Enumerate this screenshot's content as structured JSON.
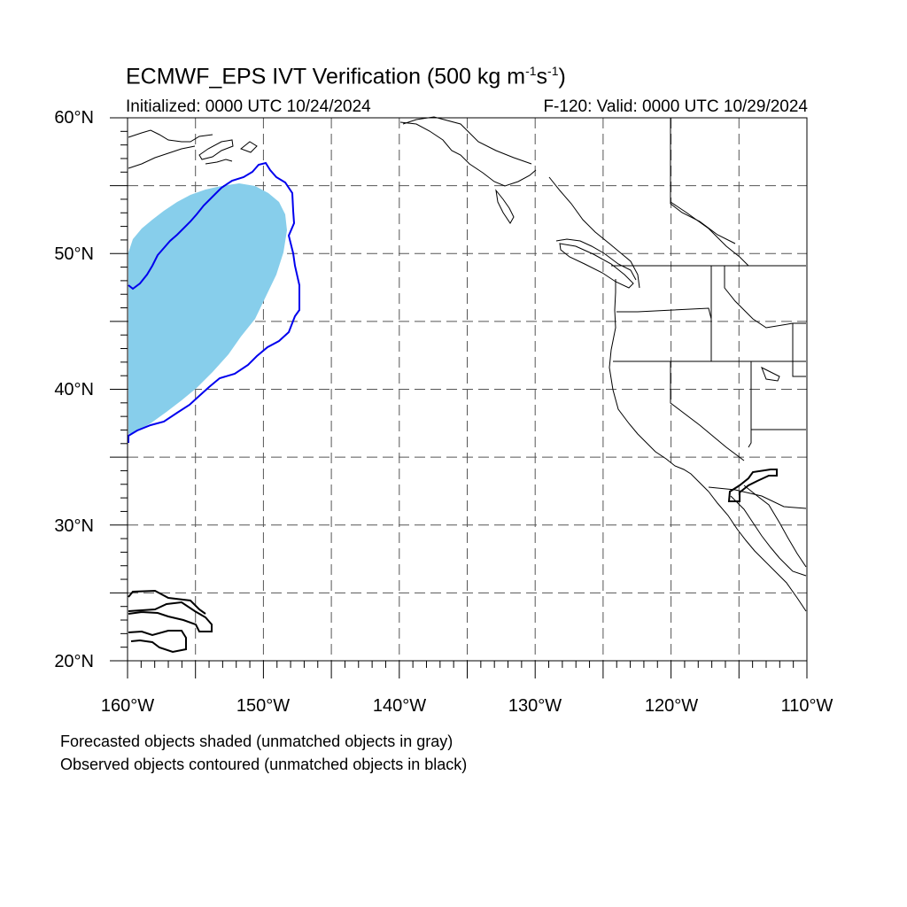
{
  "title": {
    "main": "ECMWF_EPS IVT Verification (500 kg m",
    "sup1": "-1",
    "s": "s",
    "sup2": "-1",
    "close": ")"
  },
  "initialized": "Initialized: 0000 UTC 10/24/2024",
  "valid": "F-120: Valid: 0000 UTC 10/29/2024",
  "lat_labels": [
    {
      "text": "60°N",
      "lat": 60
    },
    {
      "text": "50°N",
      "lat": 50
    },
    {
      "text": "40°N",
      "lat": 40
    },
    {
      "text": "30°N",
      "lat": 30
    },
    {
      "text": "20°N",
      "lat": 20
    }
  ],
  "lon_labels": [
    {
      "text": "160°W",
      "lon": -160
    },
    {
      "text": "150°W",
      "lon": -150
    },
    {
      "text": "140°W",
      "lon": -140
    },
    {
      "text": "130°W",
      "lon": -130
    },
    {
      "text": "120°W",
      "lon": -120
    },
    {
      "text": "110°W",
      "lon": -110
    }
  ],
  "legend": {
    "forecast_note": "Forecasted objects shaded (unmatched objects in gray)",
    "observed_note": "Observed objects contoured (unmatched objects in black)"
  },
  "colors": {
    "forecast_fill": "#87ceeb",
    "matched_contour": "#0000ee",
    "unmatched_contour": "#000000",
    "grid": "#555555",
    "coast": "#000000"
  },
  "map": {
    "lon_range": [
      -160,
      -110
    ],
    "lat_range": [
      20,
      60
    ],
    "grid_step_deg": 5
  }
}
